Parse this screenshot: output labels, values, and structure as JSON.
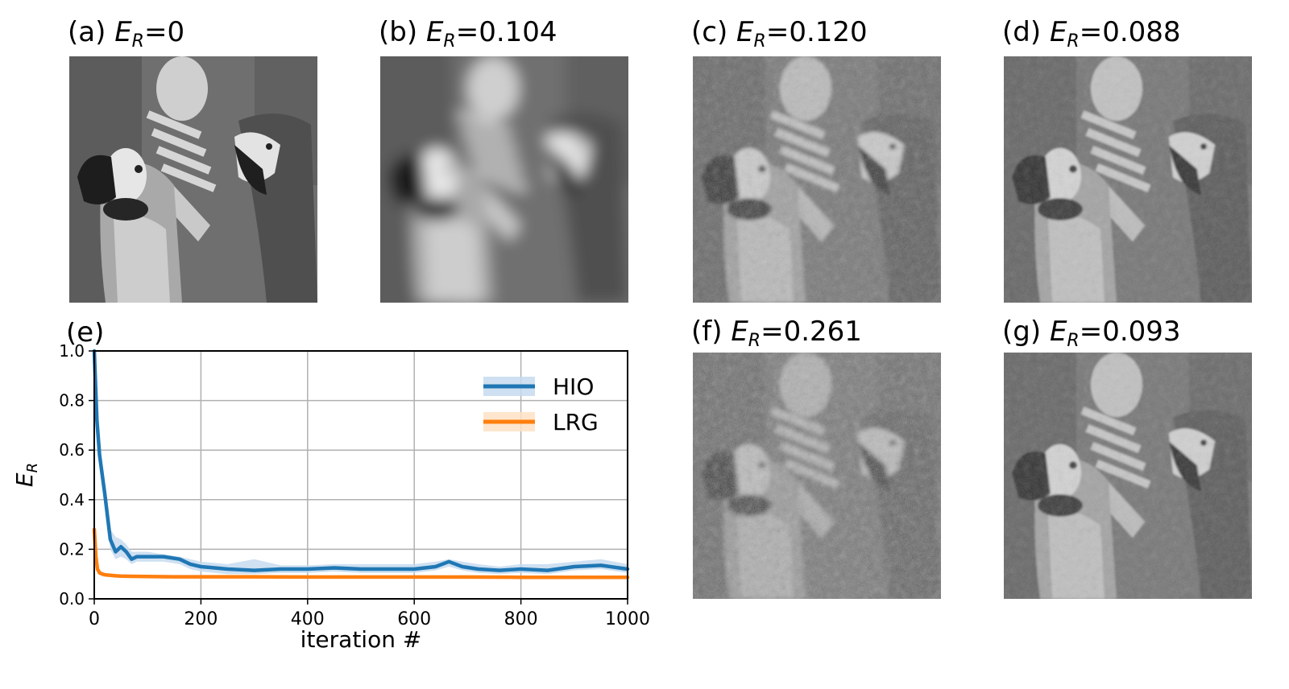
{
  "panels": [
    {
      "id": "a",
      "letter": "(a)",
      "symbol": "E",
      "subscript": "R",
      "value": "=0",
      "blur": 0,
      "noise": 0
    },
    {
      "id": "b",
      "letter": "(b)",
      "symbol": "E",
      "subscript": "R",
      "value": "=0.104",
      "blur": 9,
      "noise": 0
    },
    {
      "id": "c",
      "letter": "(c)",
      "symbol": "E",
      "subscript": "R",
      "value": "=0.120",
      "blur": 2.2,
      "noise": 0.45
    },
    {
      "id": "d",
      "letter": "(d)",
      "symbol": "E",
      "subscript": "R",
      "value": "=0.088",
      "blur": 1.2,
      "noise": 0.3
    },
    {
      "id": "f",
      "letter": "(f)",
      "symbol": "E",
      "subscript": "R",
      "value": "=0.261",
      "blur": 2.6,
      "noise": 0.65
    },
    {
      "id": "g",
      "letter": "(g)",
      "symbol": "E",
      "subscript": "R",
      "value": "=0.093",
      "blur": 1.4,
      "noise": 0.32
    }
  ],
  "colors": {
    "hio": "#1f77b4",
    "lrg": "#ff7f0e",
    "hio_band": "#c6dbef",
    "lrg_band": "#fde2c4",
    "grid": "#b0b0b0"
  },
  "chart_data": {
    "type": "line",
    "panel_label": "(e)",
    "xlabel": "iteration #",
    "ylabel_symbol": "E",
    "ylabel_subscript": "R",
    "xlim": [
      0,
      1000
    ],
    "ylim": [
      0,
      1.0
    ],
    "xticks": [
      0,
      200,
      400,
      600,
      800,
      1000
    ],
    "xtick_labels": [
      "0",
      "200",
      "400",
      "600",
      "800",
      "1000"
    ],
    "yticks": [
      0,
      0.2,
      0.4,
      0.6,
      0.8,
      1.0
    ],
    "ytick_labels": [
      "0.0",
      "0.2",
      "0.4",
      "0.6",
      "0.8",
      "1.0"
    ],
    "grid": true,
    "legend_position": "top-right",
    "series": [
      {
        "name": "HIO",
        "x": [
          0,
          5,
          10,
          20,
          30,
          40,
          50,
          60,
          70,
          80,
          90,
          100,
          130,
          160,
          180,
          200,
          250,
          300,
          350,
          400,
          450,
          500,
          550,
          600,
          640,
          665,
          690,
          720,
          760,
          800,
          850,
          900,
          950,
          1000
        ],
        "y": [
          1.0,
          0.72,
          0.58,
          0.42,
          0.24,
          0.19,
          0.21,
          0.19,
          0.16,
          0.17,
          0.17,
          0.17,
          0.17,
          0.16,
          0.14,
          0.13,
          0.12,
          0.115,
          0.12,
          0.12,
          0.125,
          0.12,
          0.12,
          0.12,
          0.13,
          0.15,
          0.13,
          0.12,
          0.115,
          0.12,
          0.115,
          0.13,
          0.135,
          0.12
        ],
        "band_upper": [
          1.0,
          0.74,
          0.6,
          0.44,
          0.28,
          0.25,
          0.24,
          0.22,
          0.19,
          0.19,
          0.19,
          0.19,
          0.18,
          0.17,
          0.16,
          0.15,
          0.14,
          0.16,
          0.135,
          0.135,
          0.14,
          0.14,
          0.14,
          0.14,
          0.15,
          0.16,
          0.15,
          0.14,
          0.13,
          0.14,
          0.14,
          0.15,
          0.16,
          0.14
        ],
        "band_lower": [
          1.0,
          0.7,
          0.56,
          0.4,
          0.2,
          0.16,
          0.17,
          0.16,
          0.14,
          0.15,
          0.15,
          0.15,
          0.15,
          0.14,
          0.12,
          0.11,
          0.1,
          0.1,
          0.105,
          0.105,
          0.11,
          0.105,
          0.105,
          0.105,
          0.115,
          0.13,
          0.115,
          0.105,
          0.1,
          0.105,
          0.1,
          0.115,
          0.12,
          0.105
        ]
      },
      {
        "name": "LRG",
        "x": [
          0,
          3,
          6,
          10,
          15,
          20,
          30,
          40,
          50,
          70,
          100,
          150,
          200,
          300,
          400,
          500,
          600,
          700,
          800,
          900,
          1000
        ],
        "y": [
          0.28,
          0.17,
          0.12,
          0.105,
          0.1,
          0.097,
          0.095,
          0.093,
          0.092,
          0.091,
          0.09,
          0.089,
          0.089,
          0.089,
          0.088,
          0.088,
          0.088,
          0.088,
          0.087,
          0.087,
          0.087
        ],
        "band_upper": [
          0.28,
          0.18,
          0.13,
          0.115,
          0.108,
          0.104,
          0.1,
          0.098,
          0.096,
          0.095,
          0.094,
          0.093,
          0.093,
          0.093,
          0.092,
          0.092,
          0.092,
          0.092,
          0.091,
          0.091,
          0.091
        ],
        "band_lower": [
          0.28,
          0.16,
          0.11,
          0.097,
          0.093,
          0.091,
          0.09,
          0.088,
          0.088,
          0.087,
          0.086,
          0.085,
          0.085,
          0.085,
          0.084,
          0.084,
          0.084,
          0.084,
          0.083,
          0.083,
          0.083
        ]
      }
    ]
  }
}
